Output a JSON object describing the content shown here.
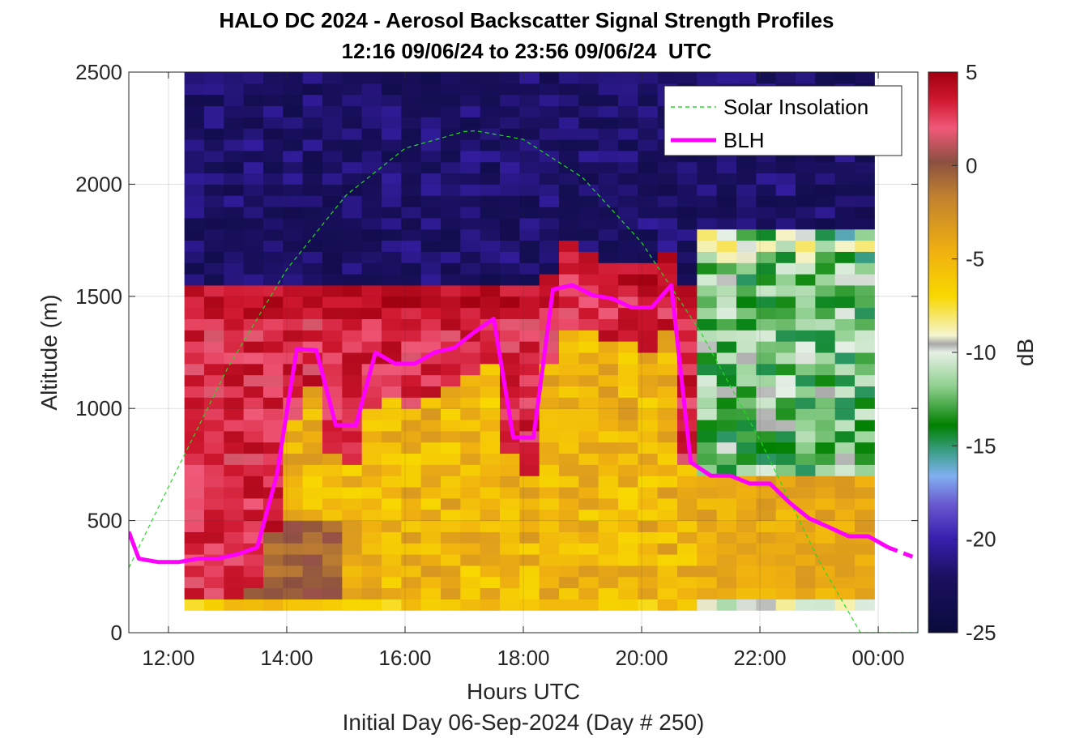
{
  "chart_data": {
    "type": "heatmap",
    "title": "HALO DC 2024 - Aerosol Backscatter Signal Strength Profiles",
    "subtitle": "12:16 09/06/24 to 23:56 09/06/24  UTC",
    "xlabel": "Hours UTC",
    "xlabel2": "Initial Day 06-Sep-2024 (Day # 250)",
    "ylabel": "Altitude (m)",
    "colorbar_label": "dB",
    "xlim": [
      11.33,
      24.67
    ],
    "ylim": [
      0,
      2500
    ],
    "x_ticks": [
      12,
      14,
      16,
      18,
      20,
      22,
      24
    ],
    "x_tick_labels": [
      "12:00",
      "14:00",
      "16:00",
      "18:00",
      "20:00",
      "22:00",
      "00:00"
    ],
    "y_ticks": [
      0,
      500,
      1000,
      1500,
      2000,
      2500
    ],
    "y_tick_labels": [
      "0",
      "500",
      "1000",
      "1500",
      "2000",
      "2500"
    ],
    "clim": [
      -25,
      5
    ],
    "colorbar_ticks": [
      5,
      0,
      -5,
      -10,
      -15,
      -20,
      -25
    ],
    "colorbar_tick_labels": [
      "5",
      "0",
      "-5",
      "-10",
      "-15",
      "-20",
      "-25"
    ],
    "grid": true,
    "legend_position": "top-right",
    "legend": [
      {
        "label": "Solar Insolation",
        "color": "#22dd22",
        "style": "dashed"
      },
      {
        "label": "BLH",
        "color": "#ff00ff",
        "style": "solid"
      }
    ],
    "heatmap": {
      "x_start": 12.27,
      "x_step": 0.3333,
      "columns": 35,
      "y_start": 100,
      "y_step": 50,
      "rows": 48
    },
    "series": [
      {
        "name": "BLH",
        "x": [
          11.33,
          11.5,
          11.83,
          12.17,
          12.5,
          12.83,
          13.17,
          13.5,
          13.83,
          14.17,
          14.5,
          14.83,
          15.17,
          15.5,
          15.83,
          16.17,
          16.5,
          16.83,
          17.17,
          17.5,
          17.83,
          18.17,
          18.5,
          18.83,
          19.17,
          19.5,
          19.83,
          20.17,
          20.5,
          20.83,
          21.17,
          21.5,
          21.83,
          22.17,
          22.5,
          22.83,
          23.17,
          23.5,
          23.83,
          24.17
        ],
        "y": [
          450,
          330,
          315,
          315,
          330,
          330,
          350,
          380,
          700,
          1265,
          1260,
          925,
          925,
          1250,
          1200,
          1200,
          1250,
          1270,
          1340,
          1400,
          870,
          870,
          1530,
          1550,
          1505,
          1490,
          1450,
          1450,
          1550,
          760,
          700,
          700,
          665,
          665,
          580,
          510,
          470,
          430,
          430,
          380
        ]
      },
      {
        "name": "BLH (extrapolated)",
        "x": [
          24.17,
          24.67
        ],
        "y": [
          380,
          330
        ]
      }
    ],
    "solar_insolation": {
      "x": [
        11.33,
        12.0,
        13.0,
        14.0,
        15.0,
        16.0,
        17.0,
        17.2,
        18.0,
        19.0,
        20.0,
        21.0,
        22.0,
        23.0,
        23.7,
        24.67
      ],
      "y": [
        290,
        650,
        1180,
        1620,
        1950,
        2160,
        2235,
        2238,
        2200,
        2030,
        1740,
        1340,
        860,
        320,
        0,
        0
      ]
    }
  }
}
